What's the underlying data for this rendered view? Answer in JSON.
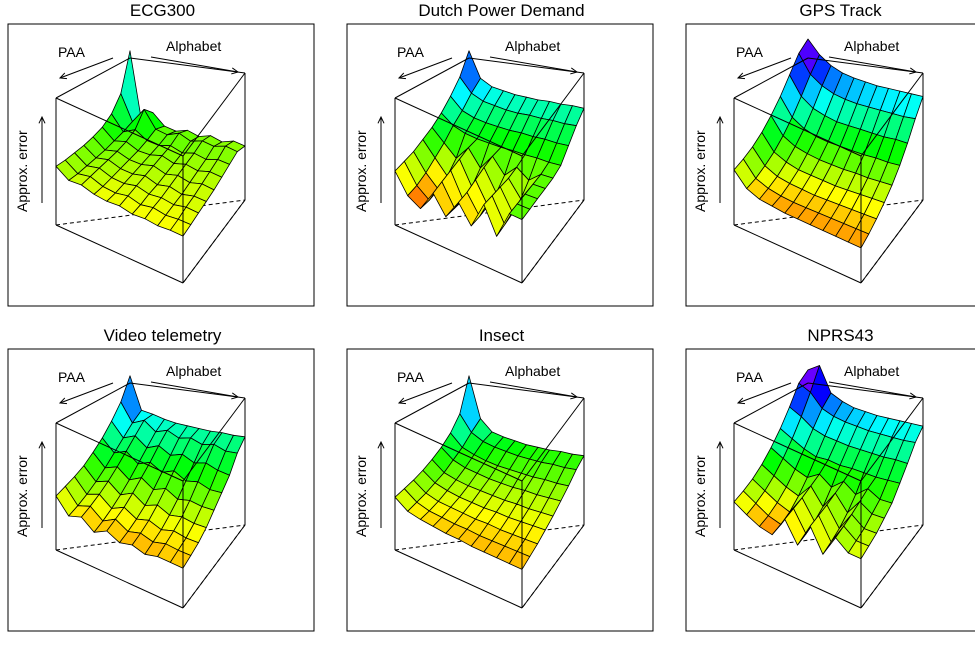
{
  "axis_labels": {
    "paa": "PAA",
    "alphabet": "Alphabet",
    "error": "Approx. error"
  },
  "chart_data": [
    {
      "type": "surface3d",
      "title": "ECG300",
      "x_axis": "PAA",
      "y_axis": "Alphabet",
      "z_axis": "Approx. error",
      "peak": 0.9,
      "z": [
        [
          0.9,
          0.32,
          0.4,
          0.3,
          0.27,
          0.29,
          0.25,
          0.27,
          0.23,
          0.25,
          0.22
        ],
        [
          0.58,
          0.36,
          0.48,
          0.33,
          0.3,
          0.33,
          0.28,
          0.3,
          0.27,
          0.29,
          0.26
        ],
        [
          0.45,
          0.32,
          0.36,
          0.29,
          0.27,
          0.29,
          0.25,
          0.27,
          0.24,
          0.26,
          0.24
        ],
        [
          0.38,
          0.29,
          0.31,
          0.26,
          0.25,
          0.27,
          0.23,
          0.25,
          0.22,
          0.24,
          0.22
        ],
        [
          0.34,
          0.26,
          0.28,
          0.24,
          0.23,
          0.25,
          0.21,
          0.23,
          0.2,
          0.22,
          0.2
        ],
        [
          0.31,
          0.24,
          0.26,
          0.22,
          0.21,
          0.23,
          0.19,
          0.21,
          0.18,
          0.2,
          0.19
        ],
        [
          0.29,
          0.22,
          0.24,
          0.2,
          0.19,
          0.21,
          0.18,
          0.19,
          0.17,
          0.19,
          0.18
        ],
        [
          0.27,
          0.2,
          0.22,
          0.18,
          0.17,
          0.19,
          0.16,
          0.18,
          0.16,
          0.17,
          0.17
        ],
        [
          0.26,
          0.19,
          0.2,
          0.17,
          0.16,
          0.17,
          0.15,
          0.16,
          0.15,
          0.16,
          0.16
        ]
      ]
    },
    {
      "type": "surface3d",
      "title": "Dutch Power Demand",
      "x_axis": "PAA",
      "y_axis": "Alphabet",
      "z_axis": "Approx. error",
      "peak": 0.9,
      "z": [
        [
          0.9,
          0.68,
          0.62,
          0.6,
          0.58,
          0.57,
          0.56,
          0.56,
          0.55,
          0.55,
          0.54
        ],
        [
          0.72,
          0.6,
          0.55,
          0.53,
          0.51,
          0.5,
          0.5,
          0.49,
          0.49,
          0.48,
          0.48
        ],
        [
          0.6,
          0.5,
          0.46,
          0.44,
          0.43,
          0.42,
          0.42,
          0.41,
          0.41,
          0.4,
          0.4
        ],
        [
          0.5,
          0.42,
          0.38,
          0.36,
          0.35,
          0.34,
          0.34,
          0.33,
          0.33,
          0.32,
          0.32
        ],
        [
          0.42,
          0.32,
          0.22,
          0.34,
          0.2,
          0.33,
          0.2,
          0.3,
          0.22,
          0.3,
          0.3
        ],
        [
          0.36,
          0.24,
          0.12,
          0.3,
          0.1,
          0.3,
          0.12,
          0.28,
          0.14,
          0.3,
          0.3
        ],
        [
          0.3,
          0.16,
          0.06,
          0.26,
          0.05,
          0.26,
          0.08,
          0.28,
          0.1,
          0.3,
          0.3
        ],
        [
          0.26,
          0.1,
          0.02,
          0.22,
          0.04,
          0.22,
          0.06,
          0.28,
          0.08,
          0.3,
          0.3
        ],
        [
          0.22,
          0.06,
          0.0,
          0.18,
          0.03,
          0.2,
          0.05,
          0.28,
          0.06,
          0.3,
          0.3
        ]
      ]
    },
    {
      "type": "surface3d",
      "title": "GPS Track",
      "x_axis": "PAA",
      "y_axis": "Alphabet",
      "z_axis": "Approx. error",
      "peak": 1.0,
      "z": [
        [
          1.0,
          0.88,
          0.8,
          0.75,
          0.72,
          0.7,
          0.68,
          0.67,
          0.66,
          0.65,
          0.64
        ],
        [
          0.92,
          0.76,
          0.68,
          0.63,
          0.6,
          0.58,
          0.57,
          0.56,
          0.55,
          0.54,
          0.54
        ],
        [
          0.78,
          0.62,
          0.54,
          0.5,
          0.47,
          0.46,
          0.45,
          0.44,
          0.43,
          0.43,
          0.42
        ],
        [
          0.64,
          0.49,
          0.42,
          0.38,
          0.36,
          0.35,
          0.34,
          0.33,
          0.33,
          0.32,
          0.32
        ],
        [
          0.52,
          0.38,
          0.32,
          0.29,
          0.27,
          0.26,
          0.25,
          0.25,
          0.24,
          0.24,
          0.24
        ],
        [
          0.42,
          0.29,
          0.24,
          0.21,
          0.2,
          0.19,
          0.18,
          0.18,
          0.18,
          0.18,
          0.18
        ],
        [
          0.34,
          0.22,
          0.17,
          0.15,
          0.14,
          0.13,
          0.13,
          0.13,
          0.13,
          0.13,
          0.13
        ],
        [
          0.28,
          0.16,
          0.12,
          0.1,
          0.09,
          0.09,
          0.09,
          0.09,
          0.09,
          0.09,
          0.09
        ],
        [
          0.23,
          0.12,
          0.08,
          0.07,
          0.06,
          0.06,
          0.06,
          0.06,
          0.06,
          0.06,
          0.06
        ]
      ]
    },
    {
      "type": "surface3d",
      "title": "Video telemetry",
      "x_axis": "PAA",
      "y_axis": "Alphabet",
      "z_axis": "Approx. error",
      "peak": 0.9,
      "z": [
        [
          0.9,
          0.62,
          0.6,
          0.57,
          0.55,
          0.54,
          0.53,
          0.52,
          0.52,
          0.51,
          0.51
        ],
        [
          0.72,
          0.56,
          0.6,
          0.52,
          0.55,
          0.5,
          0.52,
          0.48,
          0.5,
          0.46,
          0.46
        ],
        [
          0.6,
          0.48,
          0.52,
          0.44,
          0.48,
          0.42,
          0.45,
          0.4,
          0.42,
          0.38,
          0.36
        ],
        [
          0.5,
          0.4,
          0.44,
          0.36,
          0.4,
          0.34,
          0.38,
          0.32,
          0.34,
          0.3,
          0.3
        ],
        [
          0.42,
          0.32,
          0.36,
          0.28,
          0.33,
          0.26,
          0.3,
          0.24,
          0.26,
          0.24,
          0.24
        ],
        [
          0.35,
          0.25,
          0.29,
          0.21,
          0.26,
          0.19,
          0.23,
          0.18,
          0.2,
          0.18,
          0.18
        ],
        [
          0.3,
          0.19,
          0.23,
          0.15,
          0.2,
          0.14,
          0.17,
          0.13,
          0.16,
          0.14,
          0.14
        ],
        [
          0.26,
          0.14,
          0.18,
          0.1,
          0.16,
          0.1,
          0.13,
          0.1,
          0.13,
          0.12,
          0.12
        ],
        [
          0.22,
          0.1,
          0.14,
          0.06,
          0.12,
          0.07,
          0.1,
          0.07,
          0.1,
          0.1,
          0.1
        ]
      ]
    },
    {
      "type": "surface3d",
      "title": "Insect",
      "x_axis": "PAA",
      "y_axis": "Alphabet",
      "z_axis": "Approx. error",
      "peak": 0.9,
      "z": [
        [
          0.9,
          0.55,
          0.45,
          0.42,
          0.4,
          0.38,
          0.37,
          0.36,
          0.36,
          0.35,
          0.35
        ],
        [
          0.62,
          0.48,
          0.42,
          0.39,
          0.37,
          0.35,
          0.34,
          0.33,
          0.33,
          0.32,
          0.32
        ],
        [
          0.5,
          0.4,
          0.36,
          0.33,
          0.31,
          0.3,
          0.29,
          0.28,
          0.28,
          0.27,
          0.27
        ],
        [
          0.42,
          0.34,
          0.3,
          0.28,
          0.26,
          0.25,
          0.24,
          0.24,
          0.23,
          0.23,
          0.23
        ],
        [
          0.36,
          0.28,
          0.25,
          0.23,
          0.22,
          0.21,
          0.2,
          0.2,
          0.19,
          0.19,
          0.19
        ],
        [
          0.31,
          0.24,
          0.21,
          0.19,
          0.18,
          0.17,
          0.17,
          0.16,
          0.16,
          0.16,
          0.16
        ],
        [
          0.27,
          0.2,
          0.17,
          0.16,
          0.15,
          0.14,
          0.14,
          0.13,
          0.13,
          0.13,
          0.13
        ],
        [
          0.24,
          0.17,
          0.14,
          0.13,
          0.12,
          0.12,
          0.11,
          0.11,
          0.11,
          0.11,
          0.11
        ],
        [
          0.21,
          0.14,
          0.12,
          0.11,
          0.1,
          0.1,
          0.09,
          0.09,
          0.09,
          0.09,
          0.09
        ]
      ]
    },
    {
      "type": "surface3d",
      "title": "NPRS43",
      "x_axis": "PAA",
      "y_axis": "Alphabet",
      "z_axis": "Approx. error",
      "peak": 1.0,
      "z": [
        [
          0.95,
          1.0,
          0.78,
          0.72,
          0.68,
          0.66,
          0.64,
          0.63,
          0.62,
          0.61,
          0.6
        ],
        [
          0.88,
          0.82,
          0.7,
          0.65,
          0.62,
          0.6,
          0.58,
          0.57,
          0.56,
          0.55,
          0.55
        ],
        [
          0.72,
          0.66,
          0.58,
          0.54,
          0.52,
          0.5,
          0.49,
          0.48,
          0.47,
          0.47,
          0.46
        ],
        [
          0.58,
          0.52,
          0.46,
          0.42,
          0.42,
          0.4,
          0.4,
          0.39,
          0.38,
          0.38,
          0.38
        ],
        [
          0.46,
          0.4,
          0.34,
          0.3,
          0.36,
          0.28,
          0.36,
          0.28,
          0.36,
          0.3,
          0.3
        ],
        [
          0.36,
          0.3,
          0.24,
          0.2,
          0.32,
          0.18,
          0.33,
          0.2,
          0.33,
          0.26,
          0.26
        ],
        [
          0.28,
          0.22,
          0.16,
          0.12,
          0.28,
          0.12,
          0.3,
          0.14,
          0.3,
          0.22,
          0.22
        ],
        [
          0.22,
          0.16,
          0.1,
          0.07,
          0.25,
          0.08,
          0.28,
          0.1,
          0.28,
          0.2,
          0.2
        ],
        [
          0.17,
          0.11,
          0.06,
          0.04,
          0.22,
          0.05,
          0.26,
          0.07,
          0.26,
          0.18,
          0.18
        ]
      ]
    }
  ]
}
